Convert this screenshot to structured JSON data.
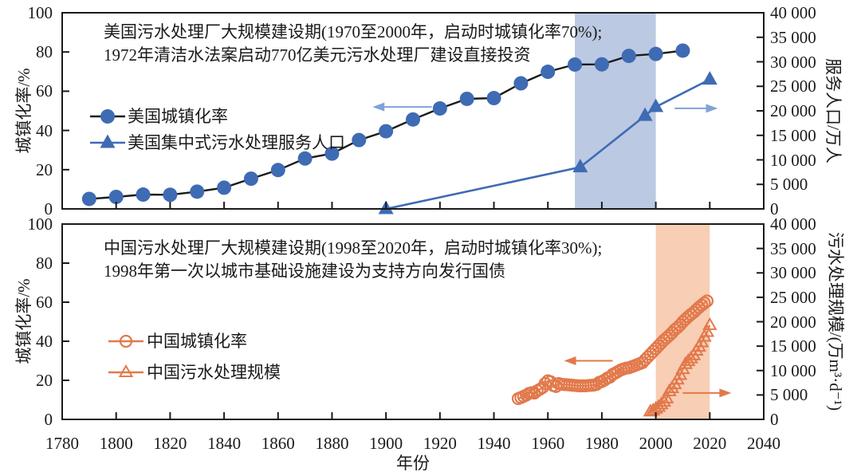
{
  "chart_data": {
    "type": "line",
    "x_axis": {
      "title": "年份",
      "min": 1780,
      "max": 2040,
      "tick_step": 20,
      "tick_labels": [
        "1780",
        "1800",
        "1820",
        "1840",
        "1860",
        "1880",
        "1900",
        "1920",
        "1940",
        "1960",
        "1980",
        "2000",
        "2020",
        "2040"
      ]
    },
    "panels": [
      {
        "id": "us",
        "annotation": {
          "line1": "美国污水处理厂大规模建设期(1970至2000年，启动时城镇化率70%);",
          "line2": "1972年清洁水法案启动770亿美元污水处理厂建设直接投资"
        },
        "left_axis": {
          "title": "城镇化率/%",
          "min": 0,
          "max": 100,
          "tick_step": 20,
          "tick_labels": [
            "0",
            "20",
            "40",
            "60",
            "80",
            "100"
          ]
        },
        "right_axis": {
          "title": "服务人口/万人",
          "min": 0,
          "max": 40000,
          "tick_step": 5000,
          "tick_labels": [
            "0",
            "5 000",
            "10 000",
            "15 000",
            "20 000",
            "25 000",
            "30 000",
            "35 000",
            "40 000"
          ]
        },
        "highlight_band": {
          "from": 1970,
          "to": 2000,
          "color": "#BCC9E2"
        },
        "legend": [
          {
            "label": "美国城镇化率",
            "marker": "filled-circle",
            "marker_color": "#3E6BB4",
            "line_color": "#1A1A1A"
          },
          {
            "label": "美国集中式污水处理服务人口",
            "marker": "filled-triangle",
            "marker_color": "#3E6BB4",
            "line_color": "#3E6BB4"
          }
        ],
        "series": [
          {
            "name": "美国城镇化率",
            "axis": "left",
            "marker": "filled-circle",
            "marker_color": "#3E6BB4",
            "line_color": "#1A1A1A",
            "x_start": 1790,
            "x_step": 10,
            "values": [
              5.1,
              6.1,
              7.3,
              7.2,
              8.8,
              10.8,
              15.4,
              19.8,
              25.7,
              28.2,
              35.1,
              39.6,
              45.6,
              51.2,
              56.1,
              56.5,
              64.0,
              69.9,
              73.6,
              73.7,
              78.0,
              79.0,
              80.7
            ]
          },
          {
            "name": "美国集中式污水处理服务人口",
            "axis": "right",
            "marker": "filled-triangle",
            "marker_color": "#3E6BB4",
            "line_color": "#3E6BB4",
            "x": [
              1900,
              1972,
              1996,
              2000,
              2020
            ],
            "values": [
              0,
              8500,
              19000,
              20800,
              26400
            ]
          }
        ],
        "arrows": [
          {
            "axis": "left",
            "x_tail": 1917,
            "x_head": 1895,
            "y": 52,
            "color": "#7FA3D8"
          },
          {
            "axis": "right",
            "x_tail": 2007,
            "x_head": 2023,
            "y": 20500,
            "color": "#7FA3D8"
          }
        ]
      },
      {
        "id": "cn",
        "annotation": {
          "line1": "中国污水处理厂大规模建设期(1998至2020年，启动时城镇化率30%);",
          "line2": "1998年第一次以城市基础设施建设为支持方向发行国债"
        },
        "left_axis": {
          "title": "城镇化率/%",
          "min": 0,
          "max": 100,
          "tick_step": 20,
          "tick_labels": [
            "0",
            "20",
            "40",
            "60",
            "80",
            "100"
          ]
        },
        "right_axis": {
          "title": "污水处理规模/(万m³·d⁻¹)",
          "min": 0,
          "max": 40000,
          "tick_step": 5000,
          "tick_labels": [
            "0",
            "5 000",
            "10 000",
            "15 000",
            "20 000",
            "25 000",
            "30 000",
            "35 000",
            "40 000"
          ]
        },
        "highlight_band": {
          "from": 2000,
          "to": 2020,
          "color": "#F8CEB5"
        },
        "legend": [
          {
            "label": "中国城镇化率",
            "marker": "open-circle",
            "marker_color": "#E2794B",
            "line_color": "#E2794B"
          },
          {
            "label": "中国污水处理规模",
            "marker": "open-triangle",
            "marker_color": "#E2794B",
            "line_color": "#E2794B"
          }
        ],
        "series": [
          {
            "name": "中国城镇化率",
            "axis": "left",
            "marker": "open-circle",
            "marker_color": "#E2794B",
            "line_color": "#E2794B",
            "x_start": 1949,
            "x_step": 1,
            "values": [
              10.64,
              11.18,
              11.78,
              12.46,
              13.31,
              13.69,
              13.48,
              14.62,
              15.39,
              16.25,
              18.41,
              19.75,
              19.29,
              17.33,
              16.84,
              18.37,
              17.98,
              17.86,
              17.74,
              17.62,
              17.5,
              17.38,
              17.26,
              17.13,
              17.2,
              17.16,
              17.34,
              17.44,
              17.55,
              17.92,
              18.96,
              19.39,
              20.16,
              21.13,
              21.62,
              23.01,
              23.71,
              24.52,
              25.32,
              25.81,
              26.21,
              26.41,
              26.94,
              27.46,
              27.99,
              28.51,
              29.04,
              30.48,
              31.91,
              33.35,
              34.78,
              36.22,
              37.66,
              39.09,
              40.53,
              41.76,
              42.99,
              44.34,
              45.89,
              46.99,
              48.34,
              49.95,
              51.27,
              52.57,
              53.73,
              54.77,
              56.1,
              57.35,
              58.52,
              59.58,
              60.6
            ]
          },
          {
            "name": "中国污水处理规模",
            "axis": "right",
            "marker": "open-triangle",
            "marker_color": "#E2794B",
            "line_color": "#E2794B",
            "x_start": 1998,
            "x_step": 1,
            "values": [
              1583,
              1790,
              2158,
              2511,
              3036,
              3584,
              4254,
              5725,
              6366,
              7146,
              8106,
              9052,
              10262,
              11303,
              11899,
              12454,
              13088,
              14038,
              14823,
              15743,
              16881,
              17863,
              19267
            ]
          }
        ],
        "arrows": [
          {
            "axis": "left",
            "x_tail": 1984,
            "x_head": 1966,
            "y": 30,
            "color": "#E2794B"
          },
          {
            "axis": "right",
            "x_tail": 2010,
            "x_head": 2028,
            "y": 5400,
            "color": "#E2794B"
          }
        ]
      }
    ]
  }
}
